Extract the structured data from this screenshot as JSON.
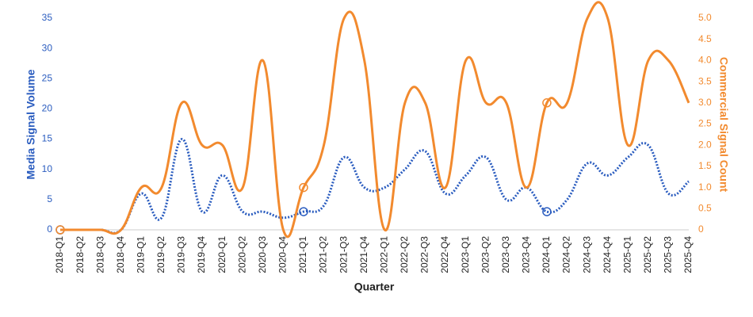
{
  "chart_data": {
    "type": "line",
    "x_label": "Quarter",
    "y_label": "Media Signal Volume",
    "y2_label": "Commercial Signal Count",
    "categories": [
      "2018-Q1",
      "2018-Q2",
      "2018-Q3",
      "2018-Q4",
      "2019-Q1",
      "2019-Q2",
      "2019-Q3",
      "2019-Q4",
      "2020-Q1",
      "2020-Q2",
      "2020-Q3",
      "2020-Q4",
      "2021-Q1",
      "2021-Q2",
      "2021-Q3",
      "2021-Q4",
      "2022-Q1",
      "2022-Q2",
      "2022-Q3",
      "2022-Q4",
      "2023-Q1",
      "2023-Q2",
      "2023-Q3",
      "2023-Q4",
      "2024-Q1",
      "2024-Q2",
      "2024-Q3",
      "2024-Q4",
      "2025-Q1",
      "2025-Q2",
      "2025-Q3",
      "2025-Q4"
    ],
    "series": [
      {
        "name": "Media Signal Volume",
        "color": "#2a5cbf",
        "axis": "y",
        "dashed": true,
        "markers": [
          0,
          12,
          24
        ],
        "values": [
          0,
          0,
          0,
          0,
          6,
          2,
          15,
          3,
          9,
          3,
          3,
          2,
          3,
          4,
          12,
          7,
          7,
          10,
          13,
          6,
          9,
          12,
          5,
          7,
          3,
          5,
          11,
          9,
          12,
          14,
          6,
          8
        ]
      },
      {
        "name": "Commercial Signal Count",
        "color": "#f28a2e",
        "axis": "y2",
        "dashed": false,
        "markers": [
          0,
          12,
          24
        ],
        "values": [
          0,
          0,
          0,
          0,
          1,
          1,
          3,
          2,
          2,
          1,
          4,
          0,
          1,
          2,
          5,
          4,
          0,
          3,
          3,
          1,
          4,
          3,
          3,
          1,
          3,
          3,
          5,
          5,
          2,
          4,
          4,
          3
        ]
      }
    ],
    "ylim": [
      0,
      35
    ],
    "yticks": [
      0,
      5,
      10,
      15,
      20,
      25,
      30,
      35
    ],
    "y2lim": [
      0,
      5
    ],
    "y2ticks": [
      0,
      0.5,
      {
        "value": 1,
        "label": "1.0"
      },
      1.5,
      {
        "value": 2,
        "label": "2.0"
      },
      2.5,
      {
        "value": 3,
        "label": "3.0"
      },
      3.5,
      {
        "value": 4,
        "label": "4.0"
      },
      4.5,
      {
        "value": 5,
        "label": "5.0"
      }
    ]
  }
}
